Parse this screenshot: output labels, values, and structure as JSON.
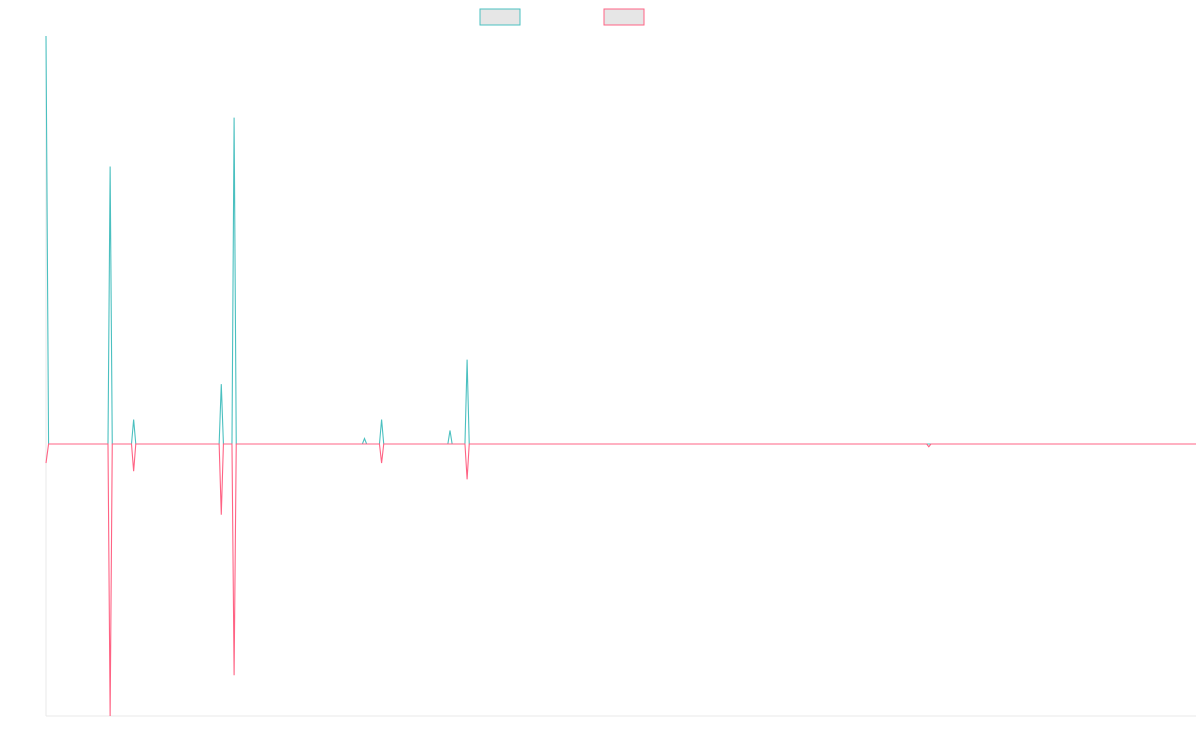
{
  "chart_data": {
    "type": "line",
    "title": "",
    "xlabel": "",
    "ylabel": "",
    "grid": false,
    "legend": "top-center",
    "x_range": [
      0,
      269
    ],
    "ylim": [
      -1.0,
      1.5
    ],
    "baseline": 0,
    "series": [
      {
        "color": "#4bc0c0",
        "fill": "#e6e6e6",
        "points": [
          [
            0,
            1.5
          ],
          [
            0.6,
            0
          ],
          [
            14.5,
            0
          ],
          [
            15,
            1.02
          ],
          [
            15.5,
            0
          ],
          [
            20,
            0
          ],
          [
            20.5,
            0.09
          ],
          [
            21,
            0
          ],
          [
            40.5,
            0
          ],
          [
            41,
            0.22
          ],
          [
            41.5,
            0
          ],
          [
            43.5,
            0
          ],
          [
            44,
            1.2
          ],
          [
            44.5,
            0
          ],
          [
            74,
            0
          ],
          [
            74.5,
            0.02
          ],
          [
            75,
            0
          ],
          [
            78,
            0
          ],
          [
            78.5,
            0.09
          ],
          [
            79,
            0
          ],
          [
            94,
            0
          ],
          [
            94.5,
            0.05
          ],
          [
            95,
            0
          ],
          [
            98,
            0
          ],
          [
            98.5,
            0.31
          ],
          [
            99,
            0
          ],
          [
            269,
            0
          ]
        ]
      },
      {
        "color": "#ff6384",
        "fill": "#e6e6e6",
        "points": [
          [
            0,
            -0.07
          ],
          [
            0.6,
            0
          ],
          [
            14.5,
            0
          ],
          [
            15,
            -1.0
          ],
          [
            15.5,
            0
          ],
          [
            20,
            0
          ],
          [
            20.5,
            -0.1
          ],
          [
            21,
            0
          ],
          [
            40.5,
            0
          ],
          [
            41,
            -0.26
          ],
          [
            41.5,
            0
          ],
          [
            43.5,
            0
          ],
          [
            44,
            -0.85
          ],
          [
            44.5,
            0
          ],
          [
            78,
            0
          ],
          [
            78.5,
            -0.07
          ],
          [
            79,
            0
          ],
          [
            98,
            0
          ],
          [
            98.5,
            -0.13
          ],
          [
            99,
            0
          ],
          [
            206,
            0
          ],
          [
            206.5,
            -0.01
          ],
          [
            207,
            0
          ],
          [
            269,
            0
          ]
        ]
      }
    ]
  }
}
